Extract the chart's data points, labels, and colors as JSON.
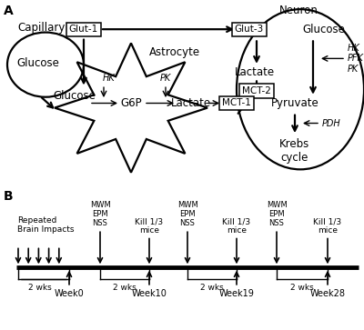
{
  "panel_a_label": "A",
  "panel_b_label": "B",
  "bg_color": "#ffffff",
  "capillary_label": "Capillary",
  "glucose_cap_label": "Glucose",
  "astrocyte_label": "Astrocyte",
  "neuron_label": "Neuron",
  "glut1_label": "Glut-1",
  "glut3_label": "Glut-3",
  "glucose_n_label": "Glucose",
  "lactate_n_label": "Lactate",
  "pyruvate_label": "Pyruvate",
  "krebs_label": "Krebs\ncycle",
  "mct2_label": "MCT-2",
  "mct1_label": "MCT-1",
  "hk_a_label": "HK",
  "pk_a_label": "PK",
  "g6p_label": "G6P",
  "lactate_a_label": "Lactate",
  "glucose_a_label": "Glucose",
  "hk_n_label": "HK",
  "pfk_n_label": "PFK",
  "pk_n_label": "PK",
  "pdh_label": "PDH",
  "repeated_label": "Repeated\nBrain Impacts",
  "mwm_label": "MWM\nEPM\nNSS",
  "kill_label": "Kill 1/3\nmice",
  "week0_label": "Week0",
  "week10_label": "Week10",
  "week19_label": "Week19",
  "week28_label": "Week28",
  "wks_label": "2 wks"
}
